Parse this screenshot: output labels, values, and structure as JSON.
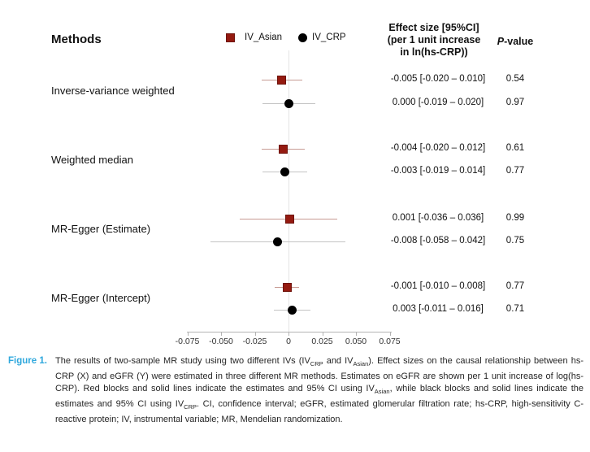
{
  "header": {
    "methods_label": "Methods",
    "effect_size_lines": [
      "Effect size [95%CI]",
      "(per 1 unit increase",
      "in ln(hs-CRP))"
    ],
    "p_value_label": {
      "italic": "P",
      "rest": "-value"
    }
  },
  "legend": {
    "items": [
      {
        "label": "IV_Asian",
        "marker": "square",
        "color": "#941a10"
      },
      {
        "label": "IV_CRP",
        "marker": "circle",
        "color": "#000000"
      }
    ]
  },
  "colors": {
    "iv_asian": "#941a10",
    "iv_asian_border": "#6e130b",
    "iv_crp": "#000000",
    "ci_asian": "#c79b93",
    "ci_crp": "#c3c3c3",
    "zero_line": "#e4e4e4",
    "axis": "#b3b3b3",
    "figure_label": "#2fa8dd",
    "text": "#111111"
  },
  "chart_data": {
    "type": "forest",
    "title": "",
    "xlabel": "",
    "x_axis": {
      "min": -0.075,
      "max": 0.075,
      "ticks": [
        {
          "value": -0.075,
          "label": "-0.075"
        },
        {
          "value": -0.05,
          "label": "-0.050"
        },
        {
          "value": -0.025,
          "label": "-0.025"
        },
        {
          "value": 0,
          "label": "0"
        },
        {
          "value": 0.025,
          "label": "0.025"
        },
        {
          "value": 0.05,
          "label": "0.050"
        },
        {
          "value": 0.075,
          "label": "0.075"
        }
      ]
    },
    "legend_entries": [
      "IV_Asian",
      "IV_CRP"
    ],
    "rows": [
      {
        "method": "Inverse-variance weighted",
        "series": [
          {
            "iv": "IV_Asian",
            "est": -0.005,
            "lo": -0.02,
            "hi": 0.01,
            "ci_text": "-0.005 [-0.020 – 0.010]",
            "p": "0.54"
          },
          {
            "iv": "IV_CRP",
            "est": 0.0,
            "lo": -0.019,
            "hi": 0.02,
            "ci_text": "0.000 [-0.019 – 0.020]",
            "p": "0.97"
          }
        ]
      },
      {
        "method": "Weighted median",
        "series": [
          {
            "iv": "IV_Asian",
            "est": -0.004,
            "lo": -0.02,
            "hi": 0.012,
            "ci_text": "-0.004 [-0.020 – 0.012]",
            "p": "0.61"
          },
          {
            "iv": "IV_CRP",
            "est": -0.003,
            "lo": -0.019,
            "hi": 0.014,
            "ci_text": "-0.003 [-0.019 – 0.014]",
            "p": "0.77"
          }
        ]
      },
      {
        "method": "MR-Egger (Estimate)",
        "series": [
          {
            "iv": "IV_Asian",
            "est": 0.001,
            "lo": -0.036,
            "hi": 0.036,
            "ci_text": "0.001 [-0.036 – 0.036]",
            "p": "0.99"
          },
          {
            "iv": "IV_CRP",
            "est": -0.008,
            "lo": -0.058,
            "hi": 0.042,
            "ci_text": "-0.008 [-0.058 – 0.042]",
            "p": "0.75"
          }
        ]
      },
      {
        "method": "MR-Egger (Intercept)",
        "series": [
          {
            "iv": "IV_Asian",
            "est": -0.001,
            "lo": -0.01,
            "hi": 0.008,
            "ci_text": "-0.001 [-0.010 – 0.008]",
            "p": "0.77"
          },
          {
            "iv": "IV_CRP",
            "est": 0.003,
            "lo": -0.011,
            "hi": 0.016,
            "ci_text": "0.003 [-0.011 – 0.016]",
            "p": "0.71"
          }
        ]
      }
    ]
  },
  "caption": {
    "label": "Figure 1.",
    "segments": [
      {
        "t": "The results of two-sample MR study using two different IVs (IV"
      },
      {
        "t": "CRP",
        "sub": true
      },
      {
        "t": " and IV"
      },
      {
        "t": "Asian",
        "sub": true
      },
      {
        "t": "). Effect sizes on the causal relationship between hs-CRP (X) and eGFR (Y) were estimated in three different MR methods. Estimates on eGFR are shown per 1 unit increase of log(hs-CRP). Red blocks and solid lines indicate the estimates and 95% CI using IV"
      },
      {
        "t": "Asian",
        "sub": true
      },
      {
        "t": ", while black blocks and solid lines indicate the estimates and 95% CI using IV"
      },
      {
        "t": "CRP",
        "sub": true
      },
      {
        "t": ". CI, confidence interval; eGFR, estimated glomerular filtration rate; hs-CRP, high-sensitivity C-reactive protein; IV, instrumental variable; MR, Mendelian randomization."
      }
    ]
  }
}
